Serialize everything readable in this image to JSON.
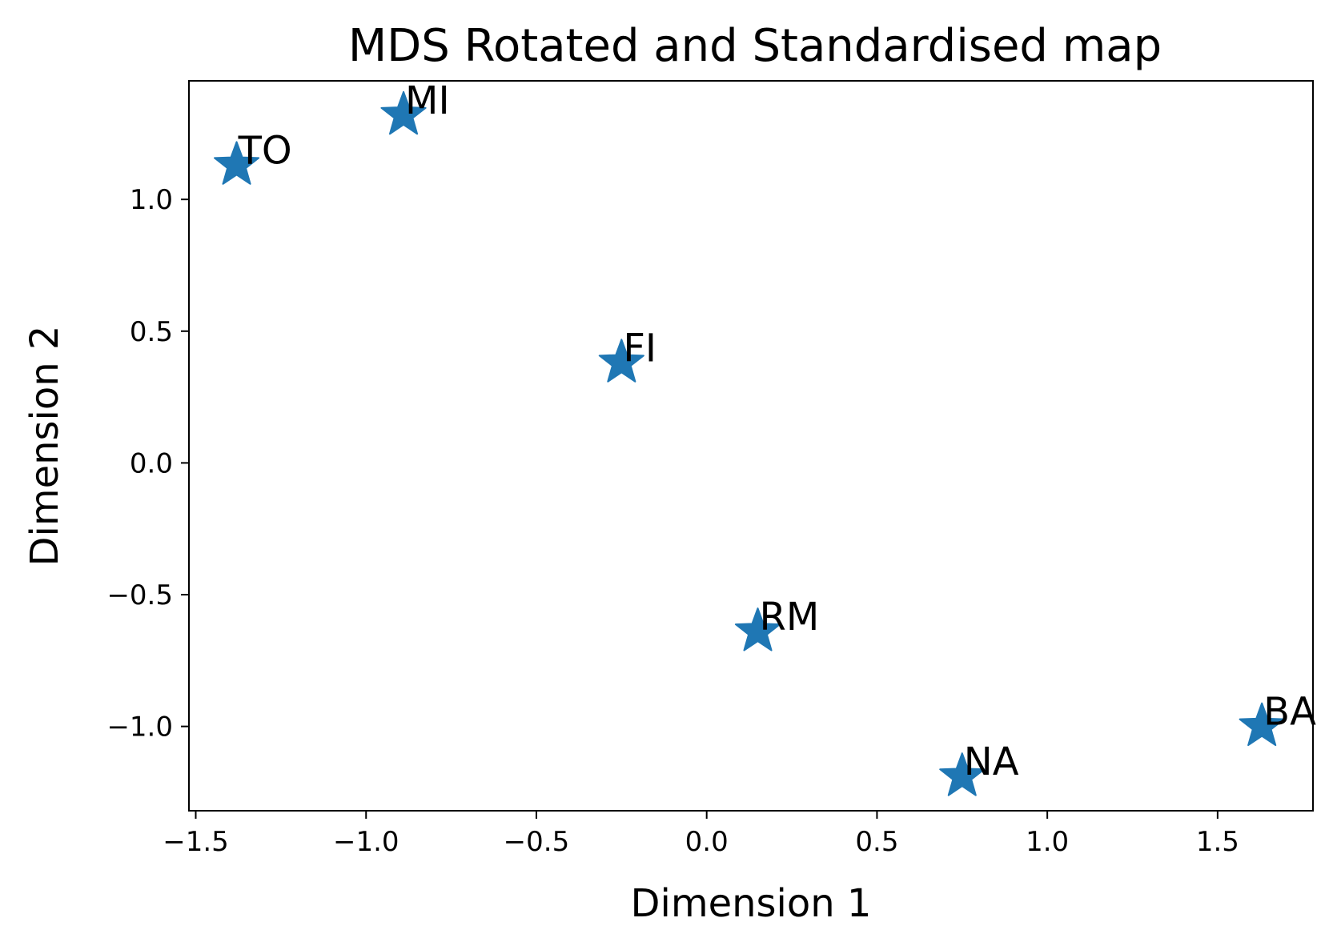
{
  "chart_data": {
    "type": "scatter",
    "title": "MDS Rotated and Standardised map",
    "xlabel": "Dimension 1",
    "ylabel": "Dimension 2",
    "xlim": [
      -1.52,
      1.78
    ],
    "ylim": [
      -1.32,
      1.45
    ],
    "x_ticks": [
      -1.5,
      -1.0,
      -0.5,
      0.0,
      0.5,
      1.0,
      1.5
    ],
    "y_ticks": [
      -1.0,
      -0.5,
      0.0,
      0.5,
      1.0
    ],
    "x_tick_labels": [
      "−1.5",
      "−1.0",
      "−0.5",
      "0.0",
      "0.5",
      "1.0",
      "1.5"
    ],
    "y_tick_labels": [
      "−1.0",
      "−0.5",
      "0.0",
      "0.5",
      "1.0"
    ],
    "grid": false,
    "marker": "star",
    "color": "#1f77b4",
    "points": [
      {
        "label": "TO",
        "x": -1.38,
        "y": 1.13
      },
      {
        "label": "MI",
        "x": -0.89,
        "y": 1.32
      },
      {
        "label": "FI",
        "x": -0.25,
        "y": 0.38
      },
      {
        "label": "RM",
        "x": 0.15,
        "y": -0.64
      },
      {
        "label": "NA",
        "x": 0.75,
        "y": -1.19
      },
      {
        "label": "BA",
        "x": 1.63,
        "y": -1.0
      }
    ]
  }
}
